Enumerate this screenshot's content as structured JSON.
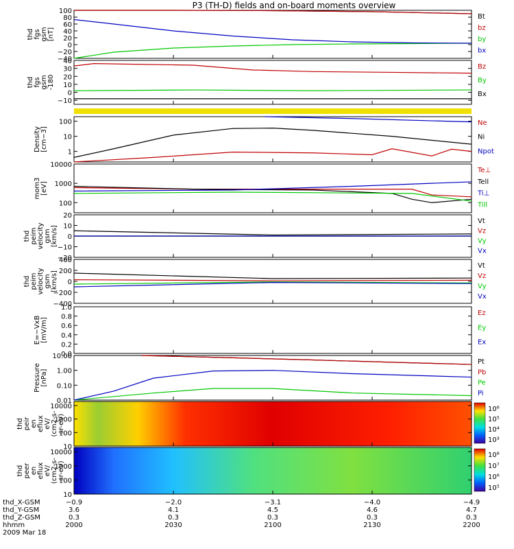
{
  "title": "P3 (TH-D) fields and on-board moments overview",
  "colors": {
    "black": "#000000",
    "red": "#c00000",
    "green": "#00c800",
    "blue": "#0000c0",
    "yellow": "#f0e000"
  },
  "chart_data": [
    {
      "type": "line",
      "id": "fgs_gsm",
      "ylabel": [
        "thd",
        "fgs",
        "gsm",
        "[nT]"
      ],
      "yticks": [
        "100",
        "80",
        "60",
        "40",
        "20",
        "0",
        "−20",
        "−40"
      ],
      "ylim": [
        -40,
        100
      ],
      "series": [
        {
          "name": "Bt",
          "color": "black",
          "x": [
            0,
            0.25,
            0.5,
            0.75,
            1
          ],
          "y": [
            100,
            100,
            99,
            96,
            90
          ]
        },
        {
          "name": "bz",
          "color": "red",
          "x": [
            0,
            0.25,
            0.5,
            0.75,
            1
          ],
          "y": [
            100,
            100,
            99,
            96,
            90
          ]
        },
        {
          "name": "by",
          "color": "green",
          "x": [
            0,
            0.1,
            0.25,
            0.4,
            0.55,
            0.7,
            0.85,
            1
          ],
          "y": [
            -40,
            -22,
            -10,
            -4,
            0,
            2,
            3,
            4
          ]
        },
        {
          "name": "bx",
          "color": "blue",
          "x": [
            0,
            0.1,
            0.25,
            0.4,
            0.55,
            0.7,
            0.85,
            1
          ],
          "y": [
            73,
            60,
            40,
            25,
            14,
            8,
            5,
            4
          ]
        }
      ]
    },
    {
      "type": "line",
      "id": "fgs_gse",
      "ylabel": [
        "thd",
        "fgs",
        "gsm",
        "-180"
      ],
      "yticks": [
        "40",
        "30",
        "20",
        "10",
        "0",
        "−10"
      ],
      "ylim": [
        -15,
        40
      ],
      "series": [
        {
          "name": "Bz",
          "color": "red",
          "x": [
            0,
            0.05,
            0.3,
            0.45,
            0.6,
            0.8,
            1
          ],
          "y": [
            33,
            36,
            34,
            28,
            26,
            25,
            24
          ]
        },
        {
          "name": "By",
          "color": "green",
          "x": [
            0,
            0.3,
            0.6,
            1
          ],
          "y": [
            2,
            3,
            2,
            3
          ]
        },
        {
          "name": "Bx",
          "color": "black",
          "x": [
            0,
            0.5,
            1
          ],
          "y": [
            -8,
            -8,
            -8
          ]
        }
      ]
    },
    {
      "type": "line",
      "id": "density",
      "ylabel": [
        "Density",
        "[cm−3]"
      ],
      "log": true,
      "yticks": [
        "100",
        "10",
        "1"
      ],
      "ylim": [
        0.2,
        200
      ],
      "series": [
        {
          "name": "Ne",
          "color": "red",
          "x": [
            0,
            0.2,
            0.4,
            0.6,
            0.75,
            0.8,
            0.9,
            0.95,
            1
          ],
          "y": [
            0.2,
            0.4,
            0.9,
            0.8,
            0.6,
            1.5,
            0.5,
            1.4,
            1
          ]
        },
        {
          "name": "Ni",
          "color": "black",
          "x": [
            0,
            0.1,
            0.25,
            0.4,
            0.5,
            0.6,
            0.8,
            1
          ],
          "y": [
            0.4,
            1.5,
            12,
            33,
            35,
            25,
            10,
            3
          ]
        },
        {
          "name": "Npot",
          "color": "blue",
          "x": [
            0.48,
            0.7,
            1
          ],
          "y": [
            200,
            150,
            90
          ]
        }
      ]
    },
    {
      "type": "line",
      "id": "temp",
      "ylabel": [
        "mom3",
        "[eV]"
      ],
      "log": true,
      "yticks": [
        "10000",
        "1000",
        "100"
      ],
      "ylim": [
        30,
        10000
      ],
      "series": [
        {
          "name": "Te⊥",
          "color": "red",
          "x": [
            0,
            0.3,
            0.6,
            0.85,
            0.9,
            1
          ],
          "y": [
            600,
            500,
            500,
            500,
            250,
            200
          ]
        },
        {
          "name": "Tell",
          "color": "black",
          "x": [
            0,
            0.3,
            0.6,
            0.8,
            0.85,
            0.9,
            1
          ],
          "y": [
            700,
            500,
            450,
            300,
            150,
            100,
            150
          ]
        },
        {
          "name": "Ti⊥",
          "color": "blue",
          "x": [
            0,
            0.4,
            0.7,
            1
          ],
          "y": [
            400,
            450,
            700,
            1200
          ]
        },
        {
          "name": "Till",
          "color": "green",
          "x": [
            0,
            0.4,
            0.85,
            1
          ],
          "y": [
            300,
            350,
            300,
            120
          ]
        }
      ]
    },
    {
      "type": "line",
      "id": "vel_e",
      "ylabel": [
        "thd",
        "peim",
        "velocity",
        "gsm",
        "[km/s]"
      ],
      "yticks": [
        "20",
        "10",
        "0",
        "−10",
        "−20"
      ],
      "ylim": [
        -20,
        20
      ],
      "series": [
        {
          "name": "Vt",
          "color": "black",
          "x": [
            0,
            0.5,
            1
          ],
          "y": [
            5,
            1,
            2
          ]
        },
        {
          "name": "Vz",
          "color": "red",
          "x": [
            0,
            0.5,
            1
          ],
          "y": [
            0,
            0,
            0
          ]
        },
        {
          "name": "Vy",
          "color": "green",
          "x": [
            0,
            0.5,
            1
          ],
          "y": [
            0,
            0,
            0
          ]
        },
        {
          "name": "Vx",
          "color": "blue",
          "x": [
            0,
            0.5,
            1
          ],
          "y": [
            0,
            0,
            0
          ]
        }
      ]
    },
    {
      "type": "line",
      "id": "vel_i",
      "ylabel": [
        "thd",
        "peim",
        "velocity",
        "gsm",
        "[km/s]"
      ],
      "yticks": [
        "400",
        "200",
        "0",
        "−200",
        "−400"
      ],
      "ylim": [
        -400,
        400
      ],
      "series": [
        {
          "name": "Vt",
          "color": "black",
          "x": [
            0,
            0.5,
            1
          ],
          "y": [
            150,
            50,
            60
          ]
        },
        {
          "name": "Vz",
          "color": "red",
          "x": [
            0,
            0.5,
            1
          ],
          "y": [
            30,
            10,
            20
          ]
        },
        {
          "name": "Vy",
          "color": "green",
          "x": [
            0,
            0.5,
            1
          ],
          "y": [
            -50,
            -10,
            -30
          ]
        },
        {
          "name": "Vx",
          "color": "blue",
          "x": [
            0,
            0.5,
            1
          ],
          "y": [
            -100,
            -20,
            -40
          ]
        }
      ]
    },
    {
      "type": "line",
      "id": "efield",
      "ylabel": [
        "E=−VxB",
        "[mV/m]"
      ],
      "yticks": [
        "1.0",
        "0.8",
        "0.6",
        "0.4",
        "0.2",
        "0.0"
      ],
      "ylim": [
        0,
        1
      ],
      "series": [
        {
          "name": "Ez",
          "color": "red",
          "x": [],
          "y": []
        },
        {
          "name": "Ey",
          "color": "green",
          "x": [],
          "y": []
        },
        {
          "name": "Ex",
          "color": "blue",
          "x": [],
          "y": []
        }
      ]
    },
    {
      "type": "line",
      "id": "pressure",
      "ylabel": [
        "Pressure",
        "[nPa]"
      ],
      "log": true,
      "yticks": [
        "10.00",
        "1.00",
        "0.10",
        "0.01"
      ],
      "ylim": [
        0.01,
        10
      ],
      "series": [
        {
          "name": "Pt",
          "color": "black",
          "x": [
            0.17,
            0.4,
            0.6,
            0.8,
            1
          ],
          "y": [
            10,
            7,
            5,
            3.5,
            2.5
          ]
        },
        {
          "name": "Pb",
          "color": "red",
          "x": [
            0.17,
            0.4,
            0.6,
            0.8,
            1
          ],
          "y": [
            10,
            7,
            5,
            3.5,
            2.5
          ]
        },
        {
          "name": "Pe",
          "color": "green",
          "x": [
            0,
            0.2,
            0.35,
            0.5,
            0.7,
            1
          ],
          "y": [
            0.01,
            0.03,
            0.06,
            0.06,
            0.03,
            0.02
          ]
        },
        {
          "name": "Pi",
          "color": "blue",
          "x": [
            0,
            0.1,
            0.2,
            0.35,
            0.5,
            0.7,
            1
          ],
          "y": [
            0.01,
            0.04,
            0.3,
            0.9,
            1.0,
            0.6,
            0.35
          ]
        }
      ]
    },
    {
      "type": "heatmap",
      "id": "ion_spec",
      "ylabel": [
        "thd",
        "peir",
        "en",
        "eflux",
        "eV/",
        "(cm2-s-",
        "sr-eV)"
      ],
      "log": true,
      "yticks": [
        "10000",
        "1000",
        "100",
        "10"
      ],
      "ylim": [
        10,
        20000
      ],
      "colorbar": {
        "ticks": [
          "10⁶",
          "10⁵",
          "10⁴",
          "10³"
        ]
      }
    },
    {
      "type": "heatmap",
      "id": "elec_spec",
      "ylabel": [
        "thd",
        "peer",
        "en",
        "eflux",
        "eV/",
        "(cm2-s-",
        "sr-eV)"
      ],
      "log": true,
      "yticks": [
        "10000",
        "1000",
        "100",
        "10"
      ],
      "ylim": [
        10,
        20000
      ],
      "colorbar": {
        "ticks": [
          "10⁸",
          "10⁷",
          "10⁶",
          "10⁵"
        ]
      }
    }
  ],
  "footer": {
    "labels": [
      "thd_X-GSM",
      "thd_Y-GSM",
      "thd_Z-GSM",
      "hhmm",
      "2009 Mar 18"
    ],
    "rows": [
      [
        "−0.9",
        "−2.0",
        "−3.1",
        "−4.0",
        "−4.9"
      ],
      [
        "3.6",
        "4.1",
        "4.5",
        "4.6",
        "4.7"
      ],
      [
        "0.3",
        "0.3",
        "0.3",
        "0.3",
        "0.3"
      ],
      [
        "2000",
        "2030",
        "2100",
        "2130",
        "2200"
      ]
    ]
  }
}
